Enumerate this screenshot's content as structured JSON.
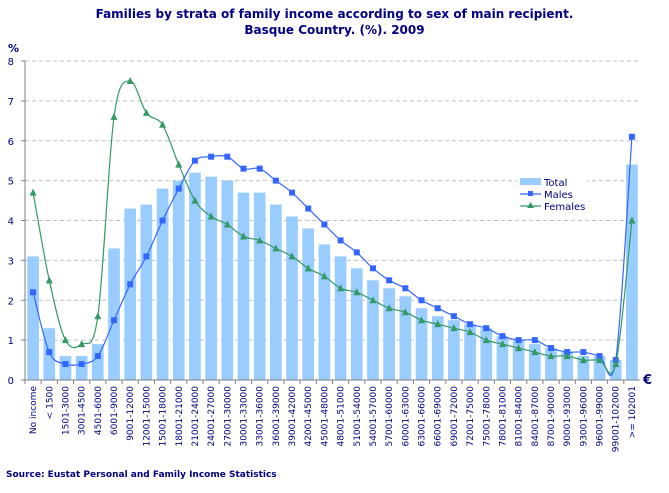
{
  "chart_data": {
    "type": "bar",
    "title": "Families by strata of family income according to sex of main recipient.",
    "subtitle": "Basque Country. (%). 2009",
    "ylabel": "%",
    "xlabel": "€",
    "ylim": [
      0,
      8
    ],
    "yticks": [
      0,
      1,
      2,
      3,
      4,
      5,
      6,
      7,
      8
    ],
    "grid": true,
    "legend_position": "right",
    "categories": [
      "No income",
      "< 1500",
      "1501-3000",
      "3001-4500",
      "4501-6000",
      "6001-9000",
      "9001-12000",
      "12001-15000",
      "15001-18000",
      "18001-21000",
      "21001-24000",
      "24001-27000",
      "27001-30000",
      "30001-33000",
      "33001-36000",
      "36001-39000",
      "39001-42000",
      "42001-45000",
      "45001-48000",
      "48001-51000",
      "51001-54000",
      "54001-57000",
      "57001-60000",
      "60001-63000",
      "63001-66000",
      "66001-69000",
      "69001-72000",
      "72001-75000",
      "75001-78000",
      "78001-81000",
      "81001-84000",
      "84001-87000",
      "87001-90000",
      "90001-93000",
      "93001-96000",
      "96001-99000",
      "99001-102000",
      ">= 102001"
    ],
    "series": [
      {
        "name": "Total",
        "type": "bar",
        "color": "#99ccff",
        "values": [
          3.1,
          1.3,
          0.6,
          0.6,
          0.9,
          3.3,
          4.3,
          4.4,
          4.8,
          5.0,
          5.2,
          5.1,
          5.0,
          4.7,
          4.7,
          4.4,
          4.1,
          3.8,
          3.4,
          3.1,
          2.8,
          2.5,
          2.3,
          2.1,
          1.8,
          1.6,
          1.5,
          1.4,
          1.3,
          1.1,
          1.0,
          0.9,
          0.8,
          0.7,
          0.6,
          0.6,
          0.5,
          5.4
        ]
      },
      {
        "name": "Males",
        "type": "line",
        "marker": "square",
        "color": "#3366ff",
        "values": [
          2.2,
          0.7,
          0.4,
          0.4,
          0.6,
          1.5,
          2.4,
          3.1,
          4.0,
          4.8,
          5.5,
          5.6,
          5.6,
          5.3,
          5.3,
          5.0,
          4.7,
          4.3,
          3.9,
          3.5,
          3.2,
          2.8,
          2.5,
          2.3,
          2.0,
          1.8,
          1.6,
          1.4,
          1.3,
          1.1,
          1.0,
          1.0,
          0.8,
          0.7,
          0.7,
          0.6,
          0.5,
          6.1
        ]
      },
      {
        "name": "Females",
        "type": "line",
        "marker": "triangle",
        "color": "#339966",
        "values": [
          4.7,
          2.5,
          1.0,
          0.9,
          1.6,
          6.6,
          7.5,
          6.7,
          6.4,
          5.4,
          4.5,
          4.1,
          3.9,
          3.6,
          3.5,
          3.3,
          3.1,
          2.8,
          2.6,
          2.3,
          2.2,
          2.0,
          1.8,
          1.7,
          1.5,
          1.4,
          1.3,
          1.2,
          1.0,
          0.9,
          0.8,
          0.7,
          0.6,
          0.6,
          0.5,
          0.5,
          0.4,
          4.0
        ]
      }
    ]
  },
  "source": "Source: Eustat Personal and Family Income Statistics"
}
